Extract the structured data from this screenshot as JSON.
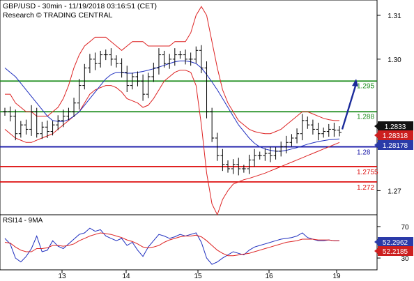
{
  "header": {
    "title": "GBP/USD - 30min - 11/19/2018 03:16:51 (CET)",
    "source": "Research © TRADING CENTRAL"
  },
  "rsi_panel": {
    "label": "RSI14 - 9MA"
  },
  "colors": {
    "price": "#000000",
    "bollinger": "#dd2222",
    "ma": "#1f2fbf",
    "green_level": "#1a8c1a",
    "red_level": "#dd1111",
    "blue_level": "#1a1aa8",
    "arrow": "#1a2a9a",
    "current_box": "#111111",
    "sub_box": "#cc1f1f",
    "ma_box": "#2a3aa8"
  },
  "chart_data": [
    {
      "type": "candlestick",
      "title": "GBP/USD - 30min - 11/19/2018 03:16:51 (CET)",
      "y_ticks": [
        "1.31",
        "1.30",
        "1.27"
      ],
      "ylim": [
        1.2645,
        1.3135
      ],
      "x_ticks": [
        "13",
        "14",
        "15",
        "16",
        "19"
      ],
      "levels": [
        {
          "value": 1.295,
          "label": "1.295",
          "color": "green"
        },
        {
          "value": 1.288,
          "label": "1.288",
          "color": "green"
        },
        {
          "value": 1.28,
          "label": "1.28",
          "color": "blue"
        },
        {
          "value": 1.2755,
          "label": "1.2755",
          "color": "red"
        },
        {
          "value": 1.272,
          "label": "1.272",
          "color": "red"
        }
      ],
      "current_price": "1.2833",
      "price_markers": [
        "1.28318",
        "1.28178"
      ],
      "close": [
        1.288,
        1.287,
        1.283,
        1.285,
        1.284,
        1.288,
        1.283,
        1.2845,
        1.2835,
        1.285,
        1.286,
        1.287,
        1.288,
        1.29,
        1.294,
        1.298,
        1.3,
        1.299,
        1.301,
        1.301,
        1.3,
        1.299,
        1.297,
        1.294,
        1.296,
        1.295,
        1.292,
        1.296,
        1.298,
        1.301,
        1.299,
        1.3,
        1.301,
        1.301,
        1.3,
        1.3,
        1.302,
        1.298,
        1.288,
        1.282,
        1.278,
        1.276,
        1.275,
        1.276,
        1.275,
        1.275,
        1.277,
        1.278,
        1.278,
        1.2785,
        1.278,
        1.279,
        1.28,
        1.281,
        1.282,
        1.283,
        1.286,
        1.285,
        1.284,
        1.283,
        1.2835,
        1.284,
        1.2838,
        1.2833
      ],
      "bollinger_upper": [
        1.292,
        1.292,
        1.29,
        1.289,
        1.288,
        1.288,
        1.287,
        1.287,
        1.287,
        1.288,
        1.289,
        1.291,
        1.294,
        1.298,
        1.301,
        1.303,
        1.304,
        1.305,
        1.305,
        1.305,
        1.304,
        1.303,
        1.302,
        1.303,
        1.304,
        1.304,
        1.304,
        1.303,
        1.303,
        1.303,
        1.303,
        1.303,
        1.304,
        1.304,
        1.304,
        1.306,
        1.31,
        1.312,
        1.31,
        1.304,
        1.298,
        1.293,
        1.29,
        1.288,
        1.286,
        1.285,
        1.284,
        1.2835,
        1.2832,
        1.283,
        1.283,
        1.2835,
        1.284,
        1.285,
        1.286,
        1.287,
        1.288,
        1.288,
        1.2875,
        1.287,
        1.2865,
        1.2862,
        1.286,
        1.286
      ],
      "bollinger_lower": [
        1.284,
        1.283,
        1.282,
        1.2815,
        1.281,
        1.281,
        1.2815,
        1.282,
        1.2825,
        1.283,
        1.284,
        1.285,
        1.286,
        1.287,
        1.288,
        1.29,
        1.292,
        1.293,
        1.2935,
        1.294,
        1.294,
        1.2935,
        1.2925,
        1.291,
        1.2905,
        1.29,
        1.289,
        1.2895,
        1.291,
        1.293,
        1.295,
        1.296,
        1.297,
        1.2975,
        1.2975,
        1.297,
        1.294,
        1.285,
        1.274,
        1.267,
        1.2645,
        1.268,
        1.27,
        1.2715,
        1.272,
        1.2725,
        1.2728,
        1.2732,
        1.2736,
        1.274,
        1.2745,
        1.275,
        1.2755,
        1.276,
        1.2765,
        1.277,
        1.2775,
        1.278,
        1.2785,
        1.279,
        1.2795,
        1.28,
        1.2805,
        1.281
      ],
      "moving_average": [
        1.298,
        1.297,
        1.296,
        1.2945,
        1.293,
        1.2915,
        1.29,
        1.2885,
        1.287,
        1.286,
        1.2858,
        1.2858,
        1.2862,
        1.287,
        1.288,
        1.2895,
        1.291,
        1.2925,
        1.294,
        1.2955,
        1.2965,
        1.297,
        1.297,
        1.2968,
        1.2968,
        1.297,
        1.2972,
        1.2975,
        1.2978,
        1.2982,
        1.2986,
        1.299,
        1.2994,
        1.2996,
        1.2996,
        1.2994,
        1.299,
        1.298,
        1.2965,
        1.2948,
        1.293,
        1.291,
        1.289,
        1.287,
        1.285,
        1.2835,
        1.282,
        1.2808,
        1.28,
        1.2795,
        1.2792,
        1.279,
        1.279,
        1.2792,
        1.2795,
        1.2798,
        1.2802,
        1.2806,
        1.2809,
        1.2812,
        1.2814,
        1.2816,
        1.2817,
        1.2818
      ],
      "projection_arrow": {
        "from": 1.284,
        "to": 1.2955
      }
    },
    {
      "type": "line",
      "title": "RSI14 - 9MA",
      "y_ticks": [
        "70",
        "30"
      ],
      "ylim": [
        15,
        85
      ],
      "x_ticks": [
        "13",
        "14",
        "15",
        "16",
        "19"
      ],
      "series": [
        {
          "name": "RSI14",
          "values": [
            55,
            48,
            30,
            25,
            32,
            42,
            58,
            38,
            40,
            52,
            45,
            42,
            48,
            54,
            60,
            62,
            68,
            64,
            66,
            58,
            55,
            52,
            55,
            46,
            50,
            40,
            32,
            44,
            52,
            60,
            58,
            55,
            57,
            60,
            58,
            60,
            62,
            50,
            30,
            22,
            25,
            30,
            34,
            38,
            36,
            34,
            40,
            44,
            46,
            48,
            50,
            52,
            54,
            55,
            56,
            58,
            62,
            56,
            54,
            52,
            52,
            53,
            52,
            52
          ]
        },
        {
          "name": "9MA",
          "values": [
            50,
            49,
            44,
            40,
            38,
            38,
            42,
            42,
            43,
            46,
            46,
            45,
            46,
            48,
            52,
            55,
            58,
            60,
            62,
            61,
            60,
            58,
            56,
            53,
            51,
            48,
            44,
            43,
            44,
            46,
            50,
            53,
            55,
            57,
            58,
            58,
            59,
            57,
            52,
            46,
            40,
            36,
            33,
            33,
            34,
            35,
            36,
            38,
            40,
            42,
            44,
            46,
            48,
            50,
            51,
            52,
            54,
            54,
            54,
            53,
            53,
            53,
            52,
            52
          ]
        }
      ],
      "current_values": [
        "52.2962",
        "52.2185"
      ]
    }
  ]
}
